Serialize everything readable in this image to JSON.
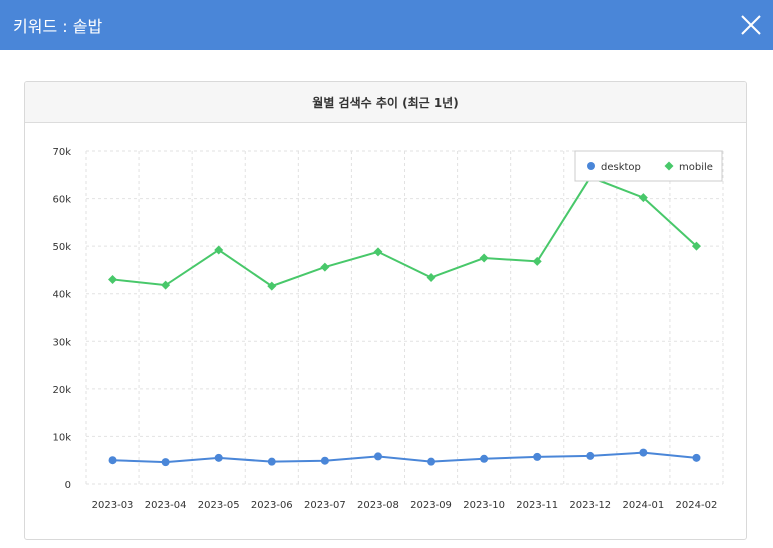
{
  "header": {
    "title": "키워드 : 솥밥"
  },
  "colors": {
    "header_bg": "#4a86d8",
    "desktop": "#4a86d8",
    "mobile": "#48c86a"
  },
  "chart_data": {
    "type": "line",
    "title": "월별 검색수 추이 (최근 1년)",
    "categories": [
      "2023-03",
      "2023-04",
      "2023-05",
      "2023-06",
      "2023-07",
      "2023-08",
      "2023-09",
      "2023-10",
      "2023-11",
      "2023-12",
      "2024-01",
      "2024-02"
    ],
    "series": [
      {
        "name": "desktop",
        "values": [
          5000,
          4600,
          5500,
          4700,
          4900,
          5800,
          4700,
          5300,
          5700,
          5900,
          6600,
          5500
        ]
      },
      {
        "name": "mobile",
        "values": [
          43000,
          41800,
          49200,
          41600,
          45600,
          48800,
          43400,
          47500,
          46800,
          64500,
          60200,
          50000
        ]
      }
    ],
    "ylim": [
      0,
      70000
    ],
    "yticks": [
      0,
      10000,
      20000,
      30000,
      40000,
      50000,
      60000,
      70000
    ],
    "ytick_labels": [
      "0",
      "10k",
      "20k",
      "30k",
      "40k",
      "50k",
      "60k",
      "70k"
    ],
    "legend_position": "top-right",
    "grid": true,
    "xlabel": "",
    "ylabel": ""
  }
}
